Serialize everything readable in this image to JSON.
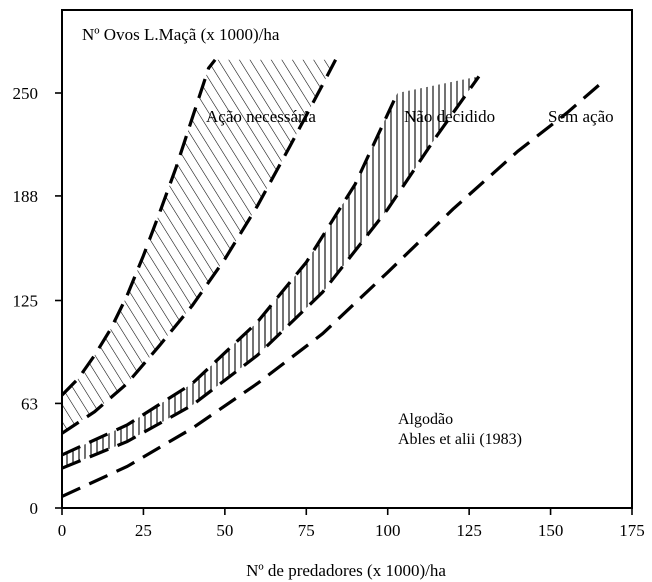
{
  "chart_data": {
    "type": "line",
    "title": "",
    "inner_label": "Nº Ovos L.Maçã (x 1000)/ha",
    "xlabel": "Nº de predadores (x 1000)/ha",
    "ylabel": "",
    "xlim": [
      0,
      175
    ],
    "ylim": [
      0,
      300
    ],
    "x_ticks": [
      0,
      25,
      50,
      75,
      100,
      125,
      150,
      175
    ],
    "y_ticks": [
      0,
      63,
      125,
      188,
      250
    ],
    "grid": false,
    "zones": [
      {
        "name": "Ação necessária",
        "hatch": "diagonal",
        "lower": [
          [
            0,
            45
          ],
          [
            10,
            58
          ],
          [
            20,
            75
          ],
          [
            30,
            98
          ],
          [
            40,
            122
          ],
          [
            50,
            150
          ],
          [
            60,
            182
          ],
          [
            70,
            218
          ],
          [
            80,
            255
          ],
          [
            84,
            270
          ]
        ],
        "upper": [
          [
            0,
            68
          ],
          [
            5,
            78
          ],
          [
            10,
            92
          ],
          [
            15,
            108
          ],
          [
            20,
            128
          ],
          [
            25,
            152
          ],
          [
            30,
            178
          ],
          [
            35,
            205
          ],
          [
            40,
            235
          ],
          [
            45,
            265
          ],
          [
            47,
            270
          ]
        ]
      },
      {
        "name": "Não decidido",
        "hatch": "vertical",
        "lower": [
          [
            0,
            24
          ],
          [
            20,
            40
          ],
          [
            40,
            62
          ],
          [
            60,
            92
          ],
          [
            80,
            130
          ],
          [
            100,
            180
          ],
          [
            115,
            224
          ],
          [
            128,
            260
          ]
        ],
        "upper": [
          [
            0,
            32
          ],
          [
            20,
            50
          ],
          [
            40,
            75
          ],
          [
            60,
            112
          ],
          [
            75,
            148
          ],
          [
            90,
            195
          ],
          [
            103,
            250
          ]
        ]
      },
      {
        "name": "Sem ação",
        "hatch": "none",
        "line": [
          [
            0,
            7
          ],
          [
            20,
            25
          ],
          [
            40,
            48
          ],
          [
            60,
            75
          ],
          [
            80,
            105
          ],
          [
            100,
            142
          ],
          [
            120,
            180
          ],
          [
            140,
            215
          ],
          [
            155,
            238
          ],
          [
            165,
            255
          ]
        ]
      }
    ],
    "annotations": [
      "Algodão",
      "Ables et alii (1983)"
    ]
  }
}
